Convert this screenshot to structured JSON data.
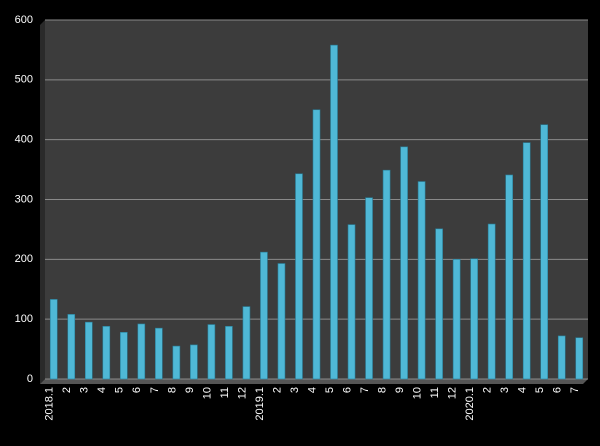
{
  "chart_data": {
    "type": "bar",
    "categories": [
      "2018.1",
      "2",
      "3",
      "4",
      "5",
      "6",
      "7",
      "8",
      "9",
      "10",
      "11",
      "12",
      "2019.1",
      "2",
      "3",
      "4",
      "5",
      "6",
      "7",
      "8",
      "9",
      "10",
      "11",
      "12",
      "2020.1",
      "2",
      "3",
      "4",
      "5",
      "6",
      "7"
    ],
    "values": [
      133,
      108,
      95,
      88,
      78,
      92,
      85,
      55,
      57,
      91,
      88,
      121,
      212,
      193,
      343,
      450,
      558,
      258,
      303,
      349,
      388,
      330,
      251,
      200,
      201,
      259,
      341,
      395,
      425,
      72,
      69
    ],
    "color": "#4fb8d6",
    "ylim": [
      0,
      600
    ],
    "yticks": [
      0,
      100,
      200,
      300,
      400,
      500,
      600
    ],
    "grid": true
  }
}
